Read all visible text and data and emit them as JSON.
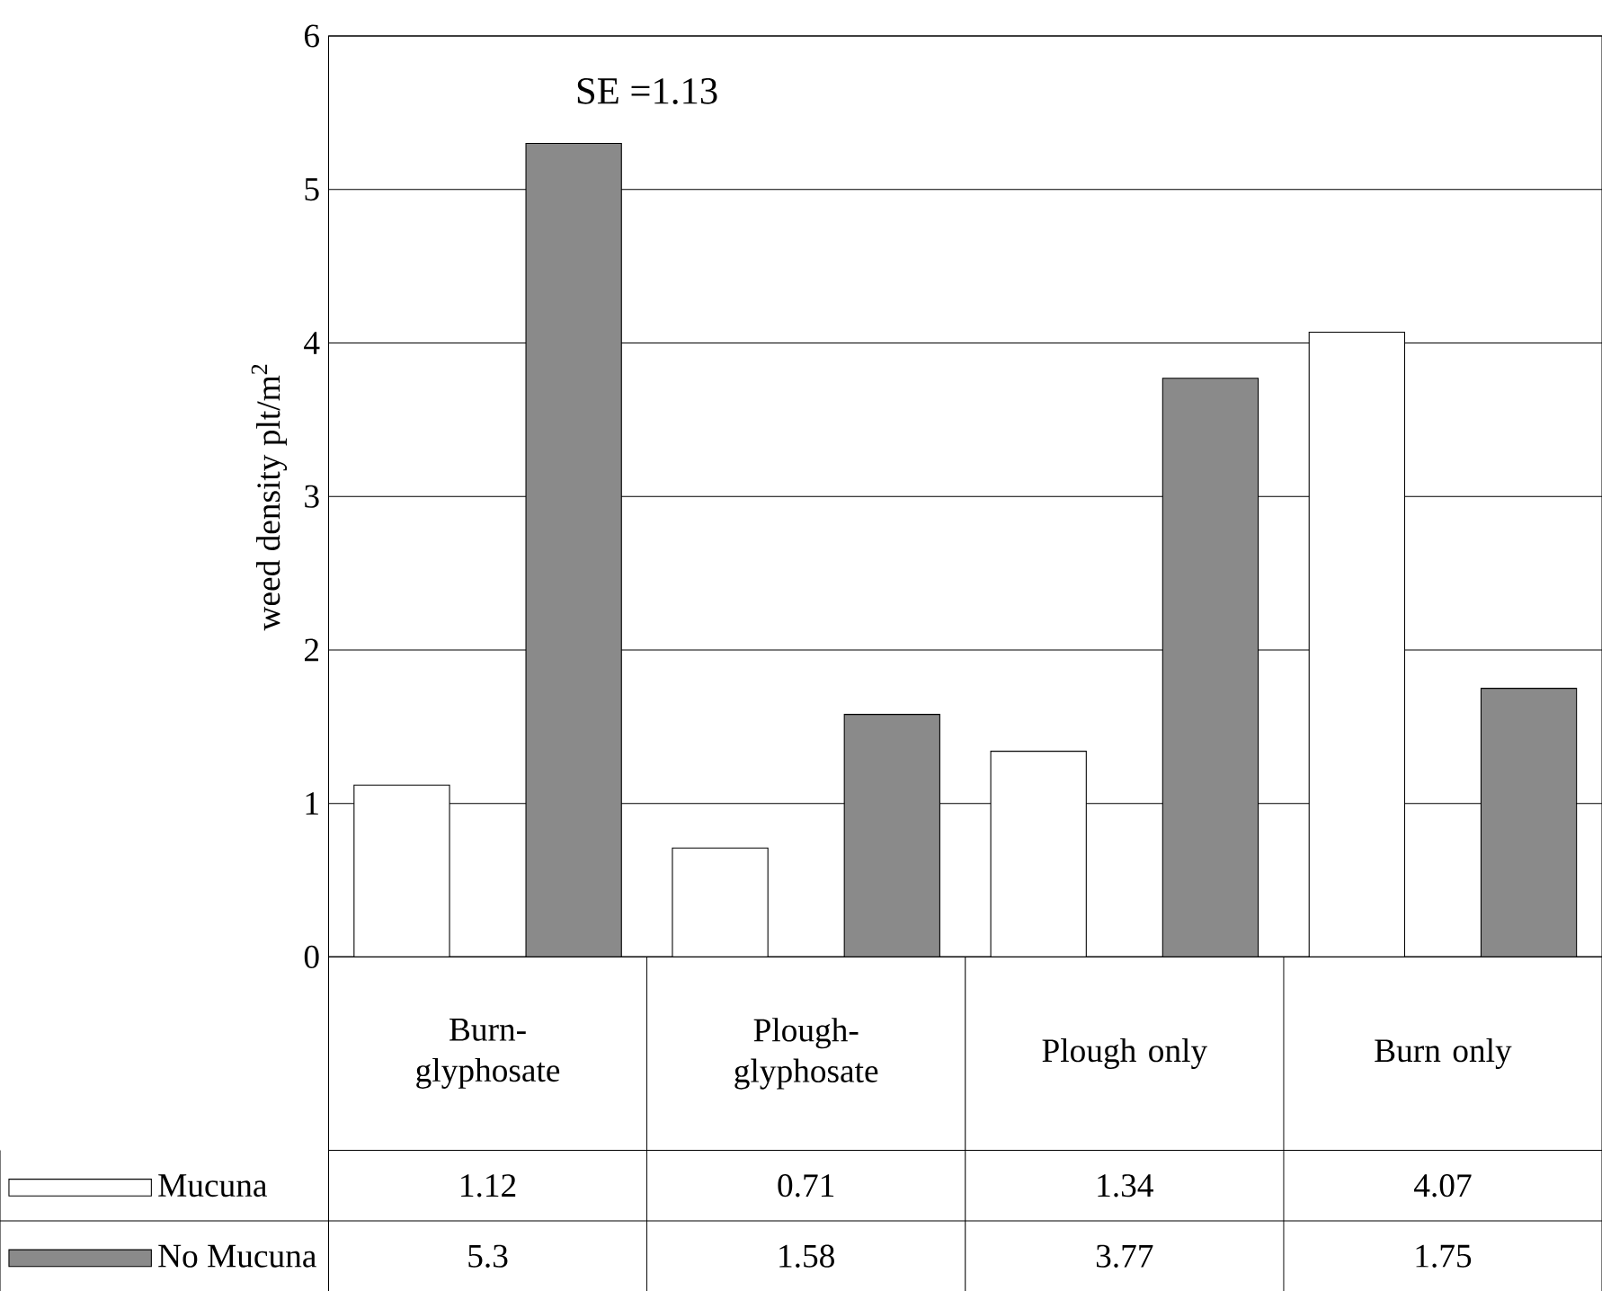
{
  "chart_data": {
    "type": "bar",
    "ylabel": "weed density plt/m$^{2}$",
    "categories": [
      "Burn-glyphosate",
      "Plough-glyphosate",
      "Plough only",
      "Burn only"
    ],
    "series": [
      {
        "name": "Mucuna",
        "color": "#ffffff",
        "values": [
          1.12,
          0.71,
          1.34,
          4.07
        ]
      },
      {
        "name": "No Mucuna",
        "color": "#8a8a8a",
        "values": [
          5.3,
          1.58,
          3.77,
          1.75
        ]
      }
    ],
    "ylim": [
      0,
      6
    ],
    "yticks": [
      0,
      1,
      2,
      3,
      4,
      5,
      6
    ],
    "grid": "y",
    "legend": "bottom left",
    "data_labels": true,
    "annotations": [
      "SE =1.13"
    ]
  }
}
